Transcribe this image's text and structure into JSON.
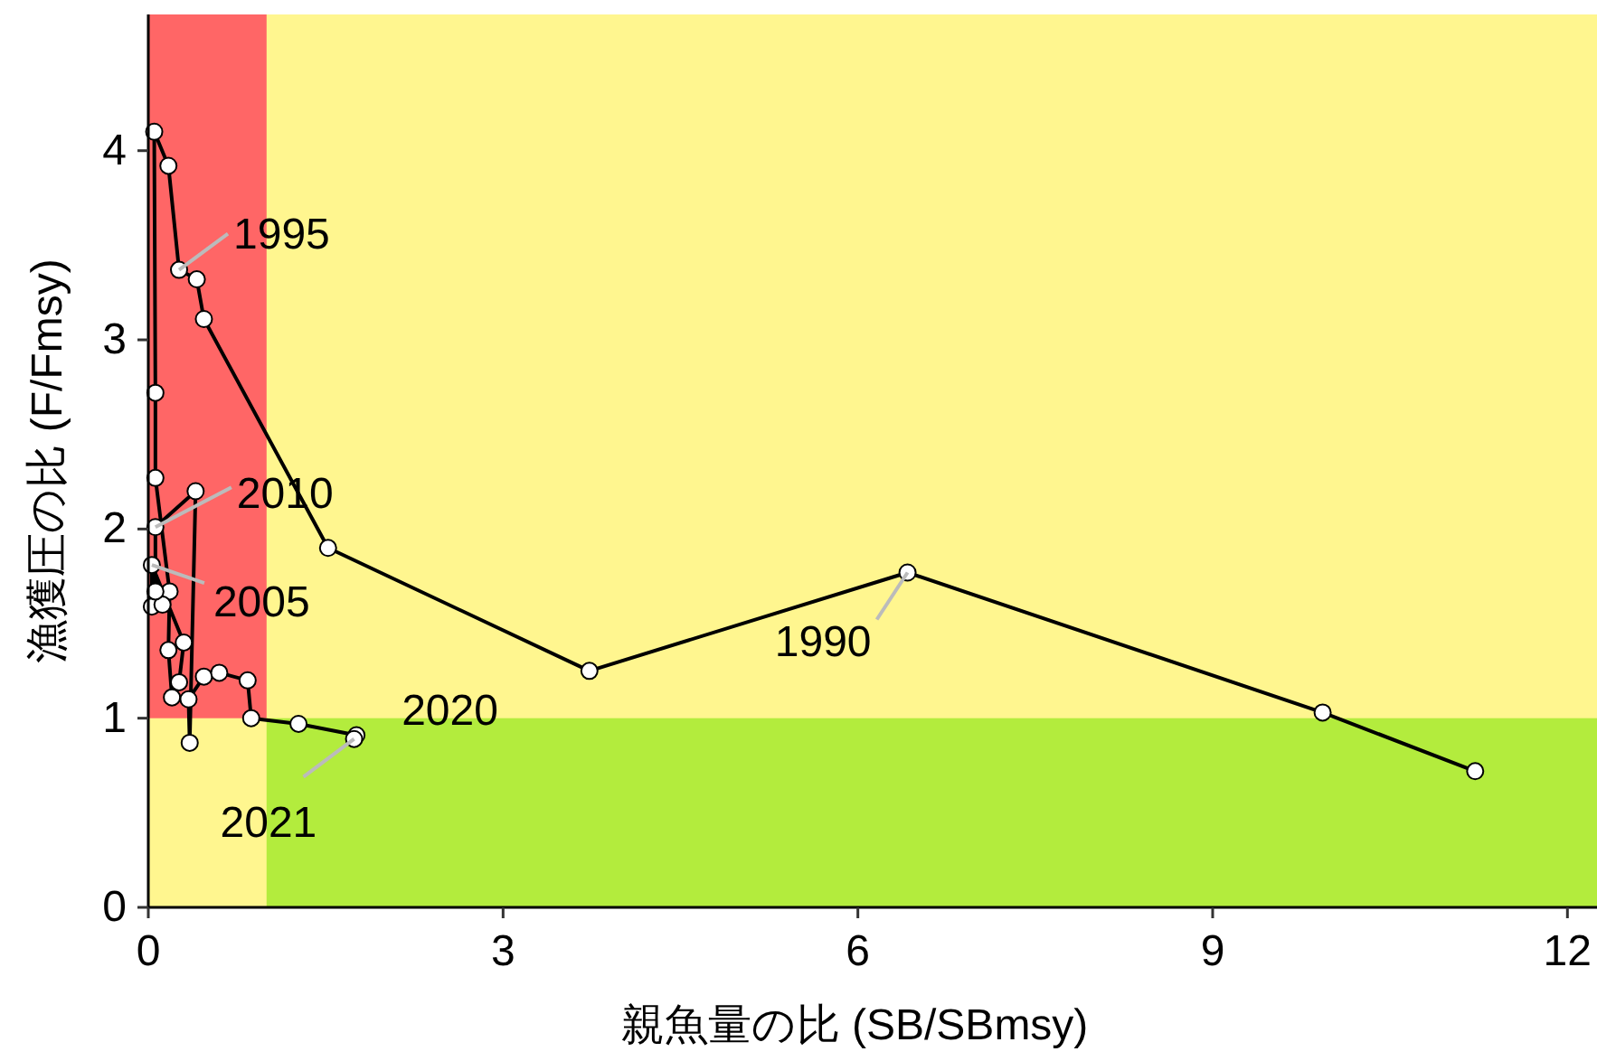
{
  "chart_data": {
    "type": "line",
    "xlabel": "親魚量の比 (SB/SBmsy)",
    "ylabel": "漁獲圧の比 (F/Fmsy)",
    "x": [
      11.22,
      9.93,
      6.42,
      3.73,
      1.52,
      0.47,
      0.41,
      0.26,
      0.17,
      0.05,
      0.06,
      0.06,
      0.18,
      0.17,
      0.2,
      0.26,
      0.3,
      0.03,
      0.03,
      0.12,
      0.06,
      0.06,
      0.4,
      0.35,
      0.34,
      0.47,
      0.6,
      0.84,
      0.87,
      1.27,
      1.76,
      1.74
    ],
    "values": [
      0.72,
      1.03,
      1.77,
      1.25,
      1.9,
      3.11,
      3.32,
      3.37,
      3.92,
      4.1,
      2.72,
      2.27,
      1.67,
      1.36,
      1.11,
      1.19,
      1.4,
      1.81,
      1.59,
      1.6,
      1.67,
      2.01,
      2.2,
      0.87,
      1.1,
      1.22,
      1.24,
      1.2,
      1.0,
      0.97,
      0.91,
      0.89
    ],
    "color": "#000000",
    "marker": "circle",
    "line_style": "solid",
    "xlim": [
      0,
      12.25
    ],
    "xticks": [
      0,
      3,
      6,
      9,
      12
    ],
    "ylim": [
      0,
      4.72
    ],
    "yticks": [
      0,
      1,
      2,
      3,
      4
    ],
    "grid": false,
    "bands": [
      {
        "axis": "x",
        "from": 0,
        "to": 1,
        "color": "#ff6666"
      },
      {
        "axis": "y",
        "from": 0,
        "to": 1,
        "color": "#b3ec3d"
      }
    ],
    "annotations": [
      {
        "text": "1990",
        "x": 6.42,
        "y": 1.77
      },
      {
        "text": "1995",
        "x": 0.26,
        "y": 3.37
      },
      {
        "text": "2005",
        "x": 0.03,
        "y": 1.81
      },
      {
        "text": "2010",
        "x": 0.06,
        "y": 2.01
      },
      {
        "text": "2020",
        "x": 1.76,
        "y": 0.91
      },
      {
        "text": "2021",
        "x": 1.74,
        "y": 0.89
      }
    ]
  }
}
